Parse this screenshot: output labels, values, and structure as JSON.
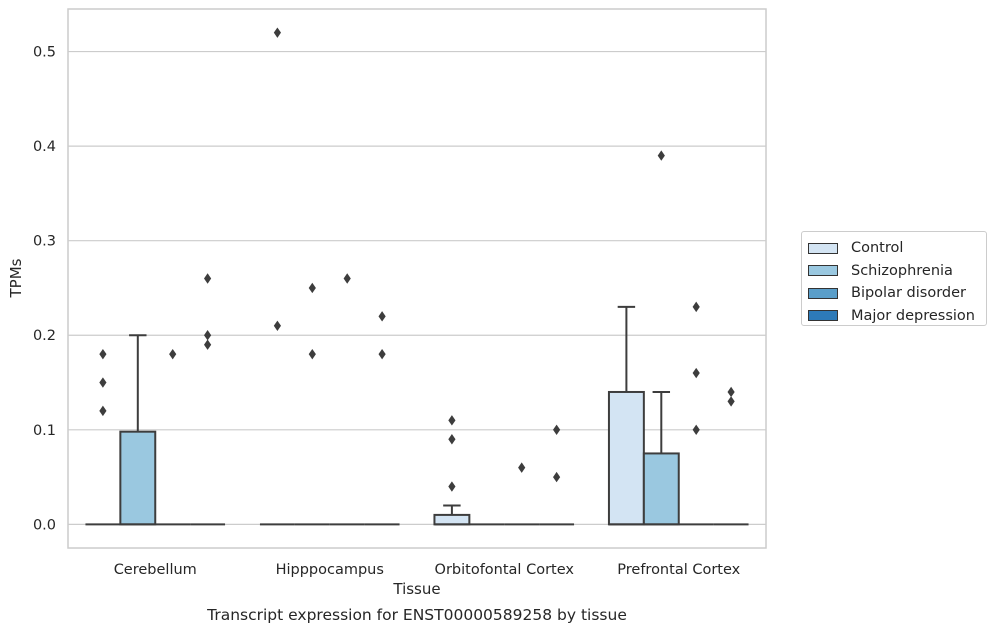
{
  "caption": "Transcript expression for ENST00000589258 by tissue",
  "chart_data": {
    "type": "box",
    "xlabel": "Tissue",
    "ylabel": "TPMs",
    "ylim": [
      -0.025,
      0.545
    ],
    "yticks": [
      0.0,
      0.1,
      0.2,
      0.3,
      0.4,
      0.5
    ],
    "ytick_labels": [
      "0.0",
      "0.1",
      "0.2",
      "0.3",
      "0.4",
      "0.5"
    ],
    "grid": "horizontal",
    "legend_position": "right",
    "categories": [
      "Cerebellum",
      "Hipppocampus",
      "Orbitofontal Cortex",
      "Prefrontal Cortex"
    ],
    "series": [
      {
        "name": "Control",
        "color": "#d3e4f3",
        "boxes": [
          {
            "q1": 0,
            "median": 0,
            "q3": 0,
            "whisker_low": 0,
            "whisker_high": 0,
            "outliers": [
              0.12,
              0.15,
              0.18
            ]
          },
          {
            "q1": 0,
            "median": 0,
            "q3": 0,
            "whisker_low": 0,
            "whisker_high": 0,
            "outliers": [
              0.21,
              0.52
            ]
          },
          {
            "q1": 0,
            "median": 0,
            "q3": 0.01,
            "whisker_low": 0,
            "whisker_high": 0.02,
            "outliers": [
              0.04,
              0.09,
              0.11
            ]
          },
          {
            "q1": 0,
            "median": 0,
            "q3": 0.14,
            "whisker_low": 0,
            "whisker_high": 0.23,
            "outliers": []
          }
        ]
      },
      {
        "name": "Schizophrenia",
        "color": "#9ac8e0",
        "boxes": [
          {
            "q1": 0,
            "median": 0,
            "q3": 0.098,
            "whisker_low": 0,
            "whisker_high": 0.2,
            "outliers": []
          },
          {
            "q1": 0,
            "median": 0,
            "q3": 0,
            "whisker_low": 0,
            "whisker_high": 0,
            "outliers": [
              0.18,
              0.25
            ]
          },
          {
            "q1": 0,
            "median": 0,
            "q3": 0,
            "whisker_low": 0,
            "whisker_high": 0,
            "outliers": []
          },
          {
            "q1": 0,
            "median": 0,
            "q3": 0.075,
            "whisker_low": 0,
            "whisker_high": 0.14,
            "outliers": [
              0.39
            ]
          }
        ]
      },
      {
        "name": "Bipolar disorder",
        "color": "#5a9ec9",
        "boxes": [
          {
            "q1": 0,
            "median": 0,
            "q3": 0,
            "whisker_low": 0,
            "whisker_high": 0,
            "outliers": [
              0.18
            ]
          },
          {
            "q1": 0,
            "median": 0,
            "q3": 0,
            "whisker_low": 0,
            "whisker_high": 0,
            "outliers": [
              0.26
            ]
          },
          {
            "q1": 0,
            "median": 0,
            "q3": 0,
            "whisker_low": 0,
            "whisker_high": 0,
            "outliers": [
              0.06
            ]
          },
          {
            "q1": 0,
            "median": 0,
            "q3": 0,
            "whisker_low": 0,
            "whisker_high": 0,
            "outliers": [
              0.1,
              0.16,
              0.23
            ]
          }
        ]
      },
      {
        "name": "Major depression",
        "color": "#2d7ab8",
        "boxes": [
          {
            "q1": 0,
            "median": 0,
            "q3": 0,
            "whisker_low": 0,
            "whisker_high": 0,
            "outliers": [
              0.19,
              0.2,
              0.26
            ]
          },
          {
            "q1": 0,
            "median": 0,
            "q3": 0,
            "whisker_low": 0,
            "whisker_high": 0,
            "outliers": [
              0.18,
              0.22
            ]
          },
          {
            "q1": 0,
            "median": 0,
            "q3": 0,
            "whisker_low": 0,
            "whisker_high": 0,
            "outliers": [
              0.05,
              0.1
            ]
          },
          {
            "q1": 0,
            "median": 0,
            "q3": 0,
            "whisker_low": 0,
            "whisker_high": 0,
            "outliers": [
              0.13,
              0.14
            ]
          }
        ]
      }
    ]
  }
}
